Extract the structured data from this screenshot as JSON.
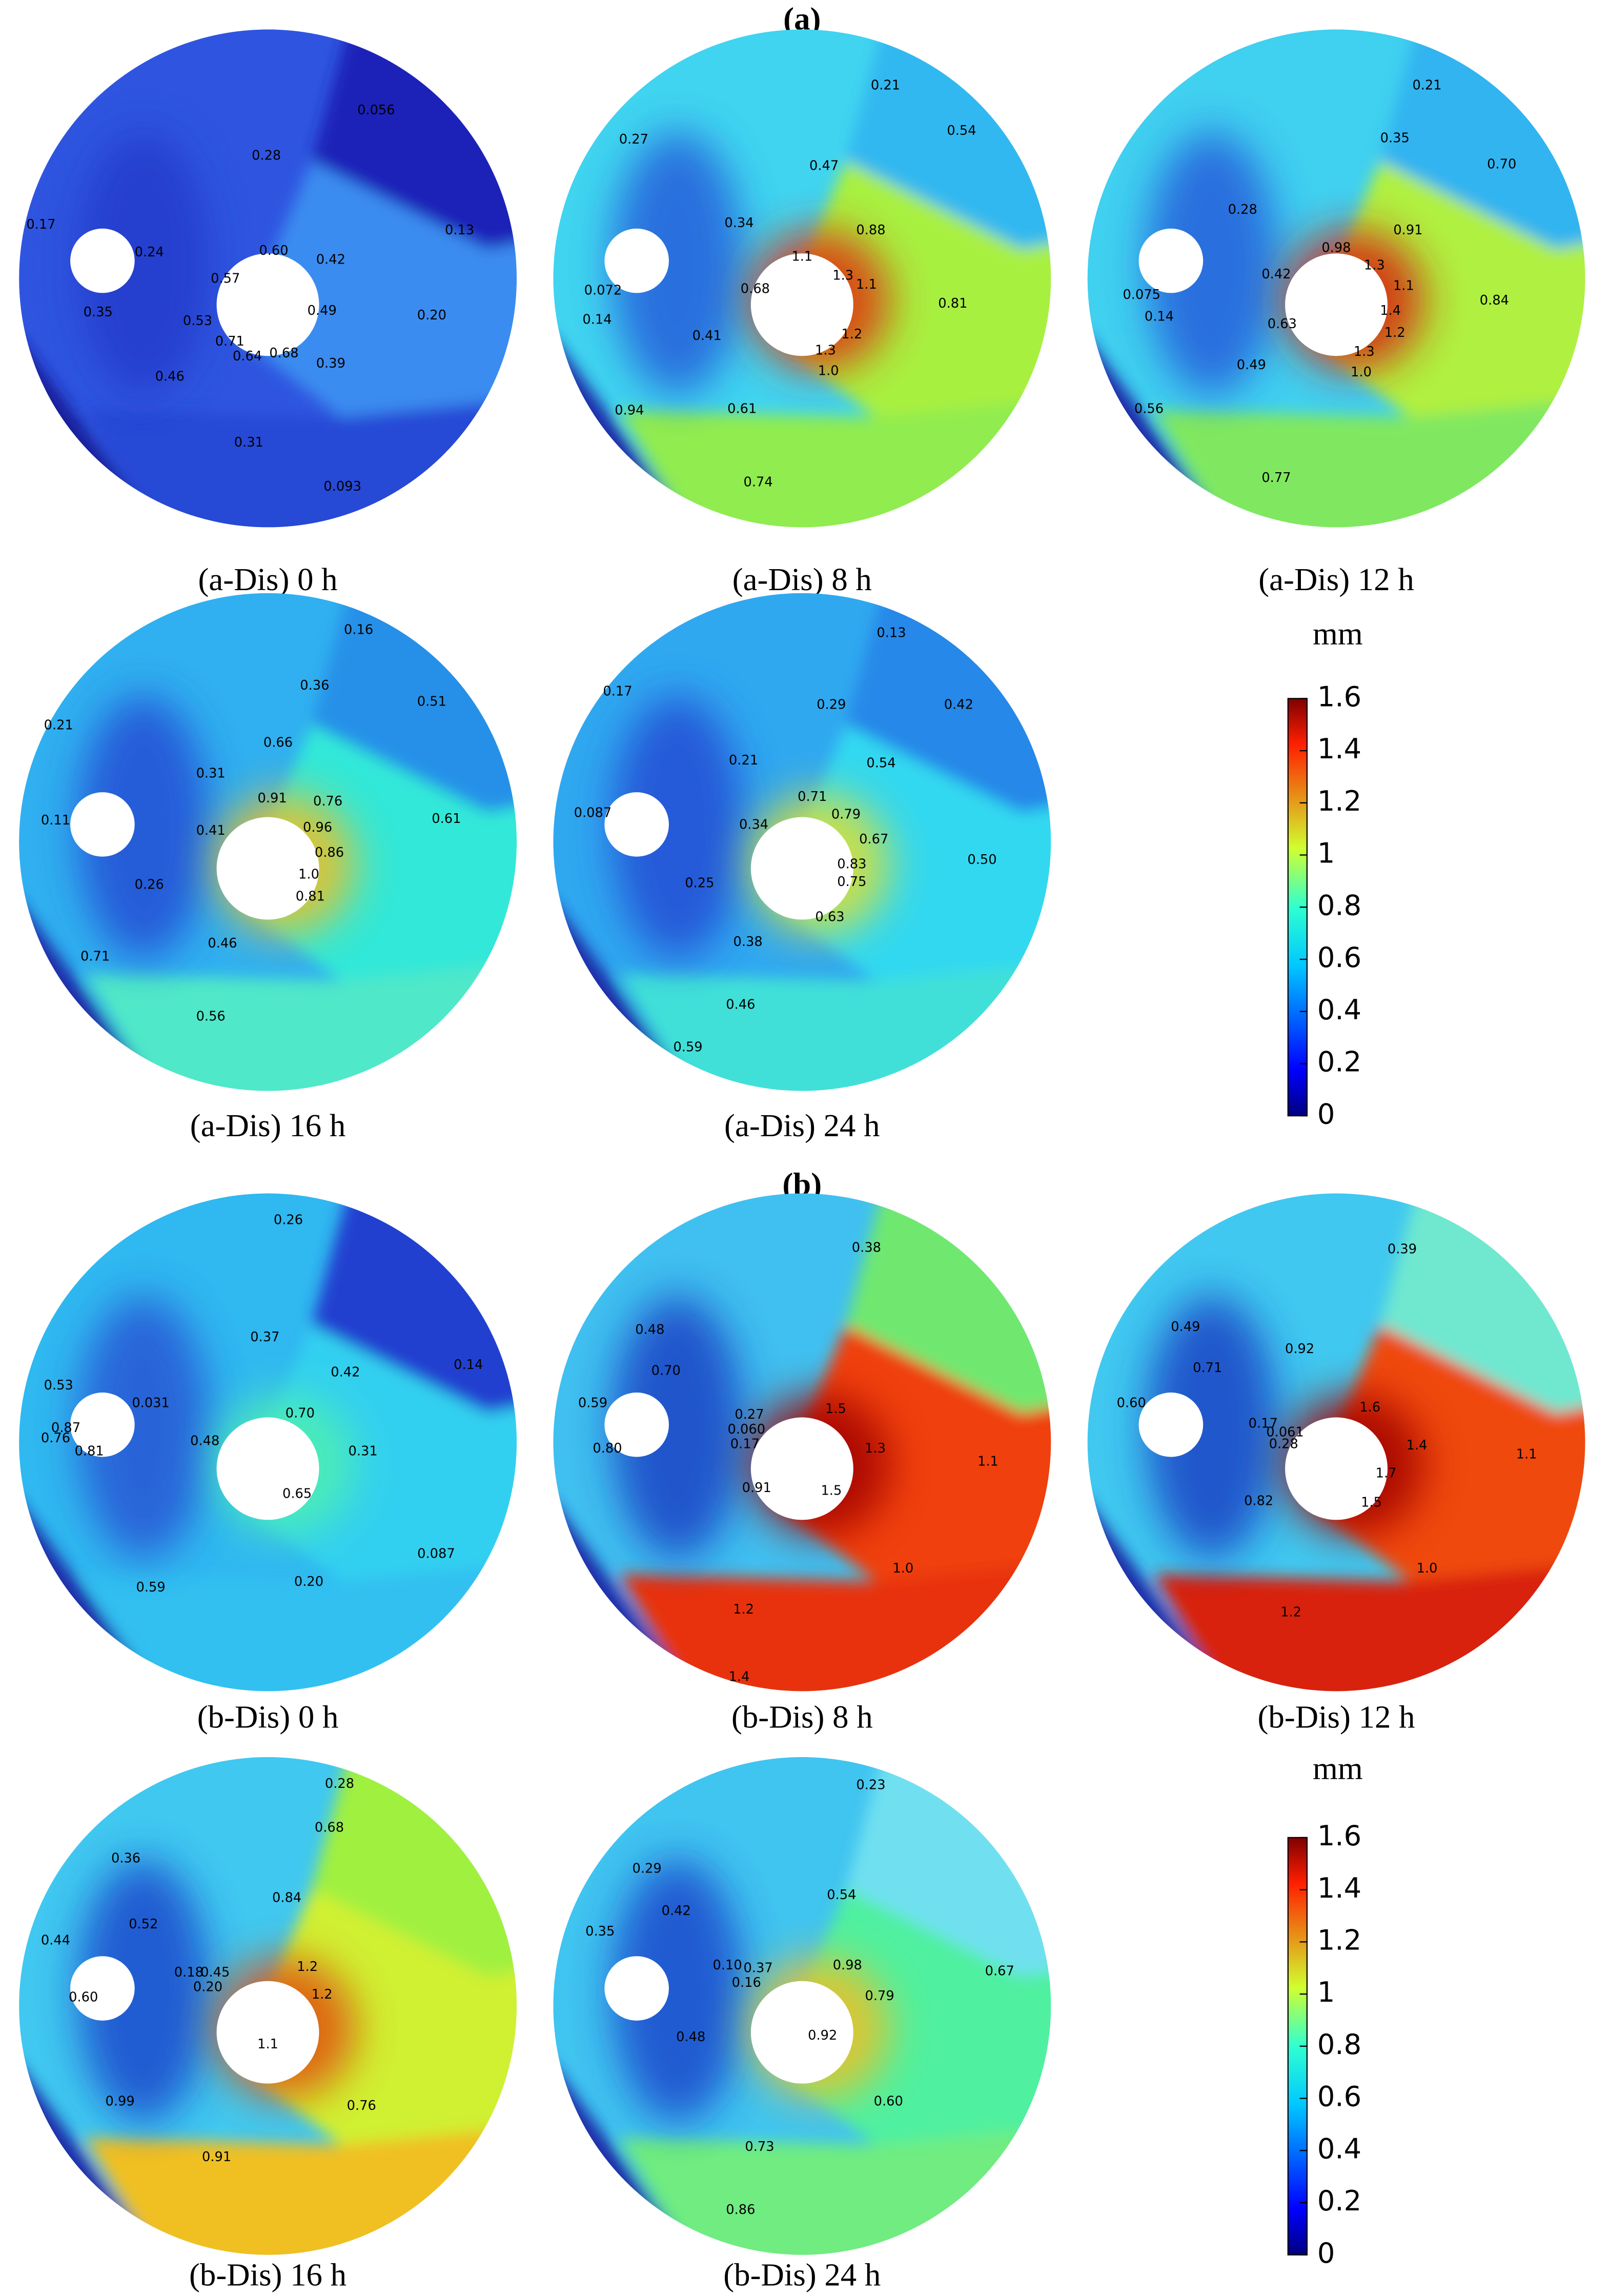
{
  "figure": {
    "sections": [
      {
        "title": "(a)",
        "panels": [
          {
            "caption": "(a-Dis) 0 h",
            "labels": [
              "0.056",
              "0.28",
              "0.17",
              "0.24",
              "0.60",
              "0.42",
              "0.13",
              "0.57",
              "0.35",
              "0.53",
              "0.49",
              "0.20",
              "0.71",
              "0.64",
              "0.68",
              "0.46",
              "0.39",
              "0.31",
              "0.093"
            ]
          },
          {
            "caption": "(a-Dis) 8 h",
            "labels": [
              "0.21",
              "0.27",
              "0.54",
              "0.47",
              "0.34",
              "0.88",
              "1.1",
              "1.3",
              "1.1",
              "0.072",
              "0.68",
              "0.81",
              "0.14",
              "0.41",
              "1.2",
              "1.3",
              "1.0",
              "0.94",
              "0.61",
              "0.74"
            ]
          },
          {
            "caption": "(a-Dis) 12 h",
            "labels": [
              "0.21",
              "0.35",
              "0.70",
              "0.28",
              "0.91",
              "0.98",
              "1.3",
              "0.42",
              "1.1",
              "0.075",
              "0.84",
              "0.14",
              "0.63",
              "1.4",
              "1.2",
              "1.3",
              "0.49",
              "1.0",
              "0.56",
              "0.77"
            ]
          },
          {
            "caption": "(a-Dis) 16 h",
            "labels": [
              "0.16",
              "0.36",
              "0.51",
              "0.21",
              "0.66",
              "0.31",
              "0.91",
              "0.76",
              "0.11",
              "0.96",
              "0.41",
              "0.61",
              "0.86",
              "1.0",
              "0.26",
              "0.81",
              "0.46",
              "0.71",
              "0.56"
            ]
          },
          {
            "caption": "(a-Dis) 24 h",
            "labels": [
              "0.13",
              "0.17",
              "0.29",
              "0.42",
              "0.21",
              "0.54",
              "0.71",
              "0.79",
              "0.087",
              "0.34",
              "0.67",
              "0.50",
              "0.83",
              "0.75",
              "0.25",
              "0.63",
              "0.38",
              "0.46",
              "0.59"
            ]
          }
        ],
        "colorbar": {
          "unit": "mm",
          "lim": [
            0,
            1.6
          ],
          "ticks": [
            0,
            0.2,
            0.4,
            0.6,
            0.8,
            1,
            1.2,
            1.4,
            1.6
          ]
        }
      },
      {
        "title": "(b)",
        "panels": [
          {
            "caption": "(b-Dis) 0 h",
            "labels": [
              "0.26",
              "0.37",
              "0.14",
              "0.42",
              "0.53",
              "0.031",
              "0.70",
              "0.87",
              "0.48",
              "0.31",
              "0.76",
              "0.81",
              "0.65",
              "0.087",
              "0.59",
              "0.20"
            ]
          },
          {
            "caption": "(b-Dis) 8 h",
            "labels": [
              "0.38",
              "0.48",
              "0.70",
              "0.59",
              "0.27",
              "1.5",
              "0.060",
              "0.17",
              "0.80",
              "1.3",
              "1.1",
              "0.91",
              "1.5",
              "1.0",
              "1.2",
              "1.4"
            ]
          },
          {
            "caption": "(b-Dis) 12 h",
            "labels": [
              "0.39",
              "0.49",
              "0.92",
              "0.71",
              "0.60",
              "0.17",
              "1.6",
              "0.061",
              "0.28",
              "1.4",
              "1.1",
              "1.7",
              "0.82",
              "1.5",
              "1.0",
              "1.2"
            ]
          },
          {
            "caption": "(b-Dis) 16 h",
            "labels": [
              "0.28",
              "0.68",
              "0.36",
              "0.84",
              "0.52",
              "0.44",
              "1.2",
              "0.18",
              "0.45",
              "0.20",
              "1.2",
              "0.60",
              "1.1",
              "0.76",
              "0.99",
              "0.91"
            ]
          },
          {
            "caption": "(b-Dis) 24 h",
            "labels": [
              "0.23",
              "0.29",
              "0.42",
              "0.54",
              "0.35",
              "0.10",
              "0.37",
              "0.98",
              "0.16",
              "0.79",
              "0.67",
              "0.48",
              "0.92",
              "0.60",
              "0.73",
              "0.86"
            ]
          }
        ],
        "colorbar": {
          "unit": "mm",
          "lim": [
            0,
            1.6
          ],
          "ticks": [
            0,
            0.2,
            0.4,
            0.6,
            0.8,
            1,
            1.2,
            1.4,
            1.6
          ]
        }
      }
    ]
  }
}
